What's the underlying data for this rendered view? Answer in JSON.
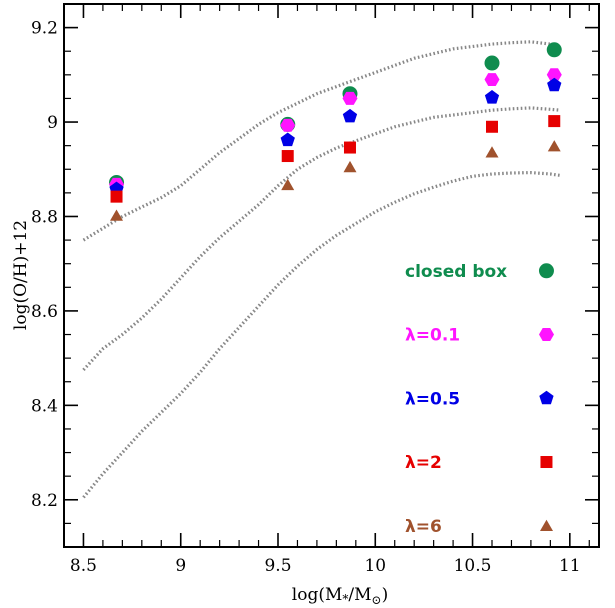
{
  "chart_data": {
    "type": "scatter",
    "xlabel": "log(M*/M⊙)",
    "ylabel": "log(O/H)+12",
    "xlim": [
      8.4,
      11.15
    ],
    "ylim": [
      8.1,
      9.25
    ],
    "x_ticks": [
      "8.5",
      "9",
      "9.5",
      "10",
      "10.5",
      "11"
    ],
    "x_tick_values": [
      8.5,
      9,
      9.5,
      10,
      10.5,
      11
    ],
    "y_ticks": [
      "8.2",
      "8.4",
      "8.6",
      "8.8",
      "9",
      "9.2"
    ],
    "y_tick_values": [
      8.2,
      8.4,
      8.6,
      8.8,
      9,
      9.2
    ],
    "grid": false,
    "legend_position": "lower-right",
    "x": [
      8.67,
      9.55,
      9.87,
      10.6,
      10.92
    ],
    "series": [
      {
        "name": "closed box",
        "marker": "circle",
        "color": "#0f8c4e",
        "values": [
          8.872,
          8.995,
          9.06,
          9.125,
          9.153
        ]
      },
      {
        "name": "λ=0.1",
        "marker": "hexagon",
        "color": "#ff14ff",
        "values": [
          8.868,
          8.993,
          9.05,
          9.09,
          9.1
        ]
      },
      {
        "name": "λ=0.5",
        "marker": "pentagon",
        "color": "#0000e6",
        "values": [
          8.858,
          8.962,
          9.012,
          9.052,
          9.078
        ]
      },
      {
        "name": "λ=2",
        "marker": "square",
        "color": "#e60000",
        "values": [
          8.842,
          8.928,
          8.946,
          8.99,
          9.002
        ]
      },
      {
        "name": "λ=6",
        "marker": "triangle",
        "color": "#a0522d",
        "values": [
          8.802,
          8.867,
          8.905,
          8.936,
          8.949
        ]
      }
    ],
    "dotted_curves": [
      {
        "x": [
          8.5,
          8.6,
          8.7,
          8.8,
          8.9,
          9.0,
          9.1,
          9.2,
          9.3,
          9.4,
          9.5,
          9.6,
          9.7,
          9.8,
          9.9,
          10.0,
          10.1,
          10.2,
          10.3,
          10.4,
          10.5,
          10.6,
          10.7,
          10.8,
          10.9,
          10.95
        ],
        "y": [
          8.75,
          8.775,
          8.8,
          8.82,
          8.84,
          8.865,
          8.9,
          8.935,
          8.965,
          8.995,
          9.02,
          9.04,
          9.06,
          9.075,
          9.09,
          9.105,
          9.12,
          9.135,
          9.145,
          9.155,
          9.16,
          9.165,
          9.168,
          9.17,
          9.165,
          9.155
        ]
      },
      {
        "x": [
          8.5,
          8.6,
          8.7,
          8.8,
          8.9,
          9.0,
          9.1,
          9.2,
          9.3,
          9.4,
          9.5,
          9.6,
          9.7,
          9.8,
          9.9,
          10.0,
          10.1,
          10.2,
          10.3,
          10.4,
          10.5,
          10.6,
          10.7,
          10.8,
          10.9,
          10.95
        ],
        "y": [
          8.475,
          8.52,
          8.55,
          8.585,
          8.625,
          8.67,
          8.715,
          8.755,
          8.79,
          8.825,
          8.865,
          8.9,
          8.925,
          8.945,
          8.96,
          8.975,
          8.99,
          9.0,
          9.01,
          9.015,
          9.02,
          9.025,
          9.028,
          9.03,
          9.027,
          9.025
        ]
      },
      {
        "x": [
          8.5,
          8.6,
          8.7,
          8.8,
          8.9,
          9.0,
          9.1,
          9.2,
          9.3,
          9.4,
          9.5,
          9.6,
          9.7,
          9.8,
          9.9,
          10.0,
          10.1,
          10.2,
          10.3,
          10.4,
          10.5,
          10.6,
          10.7,
          10.8,
          10.9,
          10.95
        ],
        "y": [
          8.205,
          8.255,
          8.3,
          8.345,
          8.385,
          8.425,
          8.47,
          8.52,
          8.565,
          8.61,
          8.655,
          8.695,
          8.73,
          8.76,
          8.785,
          8.81,
          8.83,
          8.848,
          8.862,
          8.875,
          8.885,
          8.89,
          8.892,
          8.893,
          8.89,
          8.887
        ]
      }
    ]
  }
}
